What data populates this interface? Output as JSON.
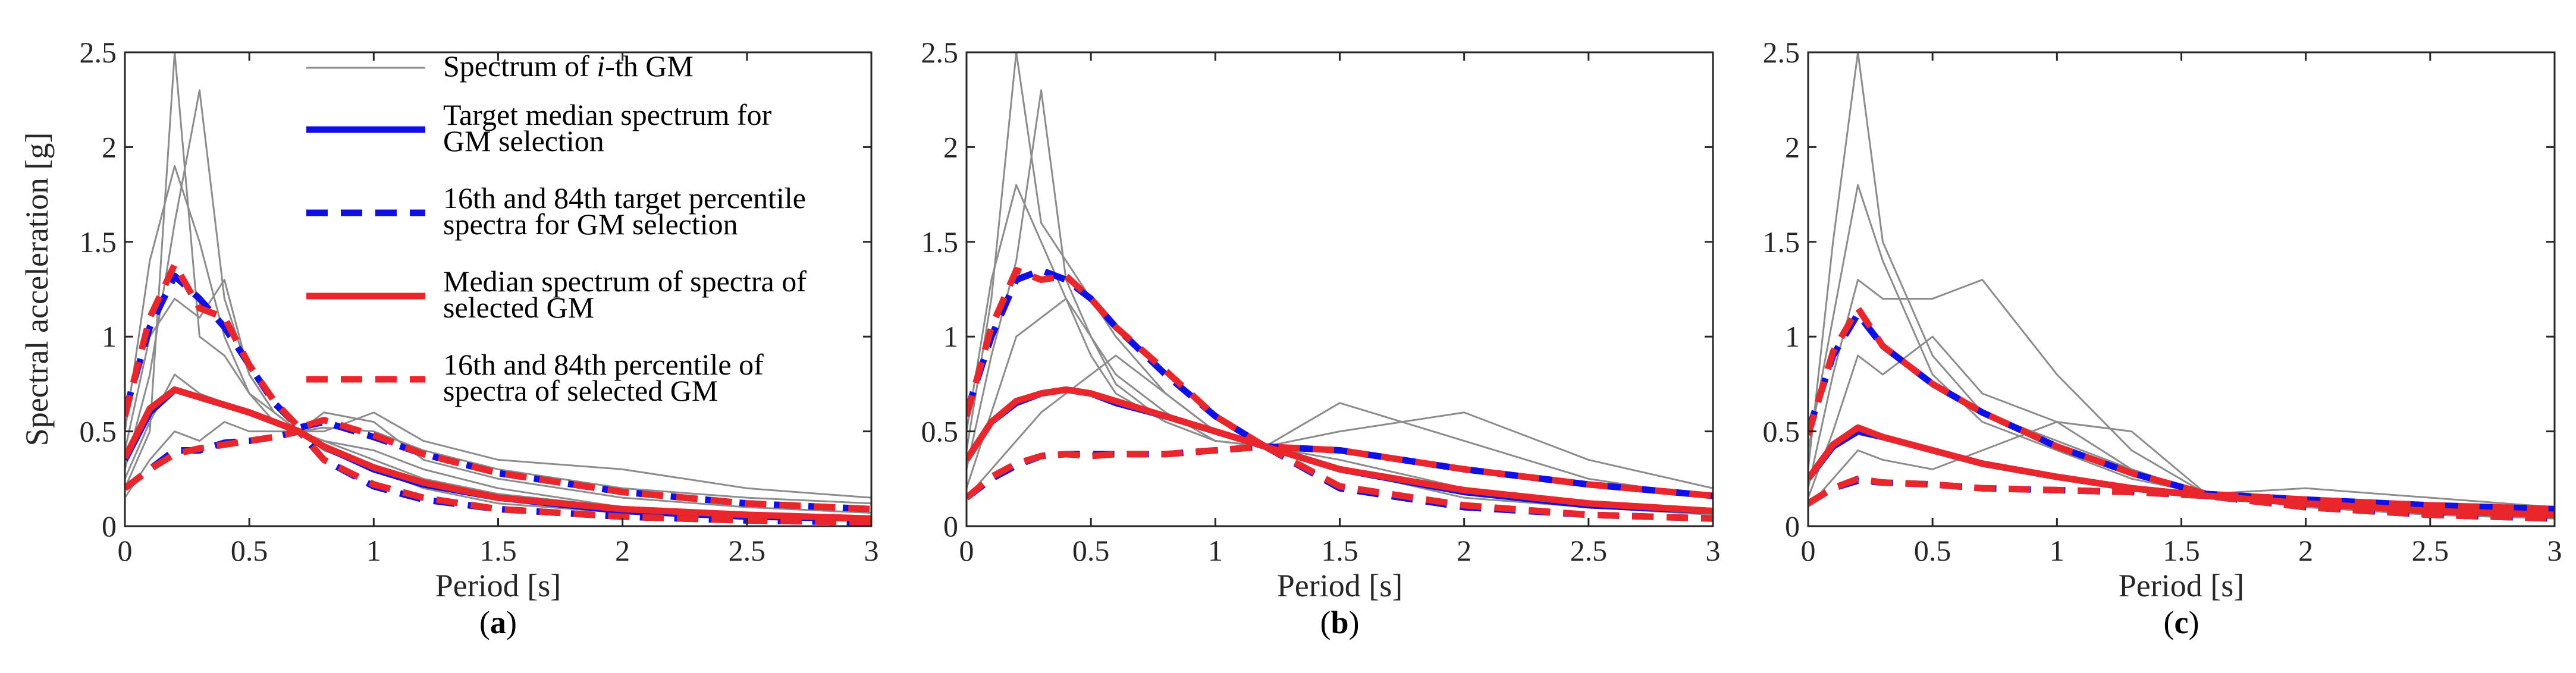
{
  "colors": {
    "gm": "#8c8c8c",
    "target": "#1010e6",
    "selected": "#e8262b",
    "axis": "#262626"
  },
  "legend": {
    "items": [
      {
        "lines": [
          "Spectrum of ",
          "i",
          "-th GM"
        ],
        "style": "gm"
      },
      {
        "lines": [
          "Target median spectrum for",
          "GM selection"
        ],
        "style": "target-solid"
      },
      {
        "lines": [
          "16th and 84th target percentile",
          "spectra for GM selection"
        ],
        "style": "target-dash"
      },
      {
        "lines": [
          "Median spectrum of spectra of",
          "selected GM"
        ],
        "style": "selected-solid"
      },
      {
        "lines": [
          "16th and 84th percentile of",
          "spectra of selected GM"
        ],
        "style": "selected-dash"
      }
    ]
  },
  "chart_data": [
    {
      "type": "line",
      "panel_label": "a",
      "xlabel": "Period [s]",
      "ylabel": "Spectral acceleration [g]",
      "xlim": [
        0,
        3
      ],
      "ylim": [
        0,
        2.5
      ],
      "xticks": [
        "0",
        "0.5",
        "1",
        "1.5",
        "2",
        "2.5",
        "3"
      ],
      "yticks": [
        "0",
        "0.5",
        "1",
        "1.5",
        "2",
        "2.5"
      ],
      "x": [
        0,
        0.1,
        0.2,
        0.3,
        0.4,
        0.5,
        0.6,
        0.7,
        0.8,
        1.0,
        1.2,
        1.5,
        2.0,
        2.5,
        3.0
      ],
      "series": [
        {
          "name": "Target median spectrum for GM selection",
          "values": [
            0.35,
            0.6,
            0.72,
            0.68,
            0.64,
            0.6,
            0.55,
            0.5,
            0.42,
            0.3,
            0.22,
            0.15,
            0.08,
            0.05,
            0.04
          ]
        },
        {
          "name": "Target 84th percentile spectrum",
          "values": [
            0.6,
            1.05,
            1.32,
            1.2,
            1.05,
            0.85,
            0.65,
            0.52,
            0.55,
            0.47,
            0.38,
            0.28,
            0.18,
            0.12,
            0.09
          ]
        },
        {
          "name": "Target 16th percentile spectrum",
          "values": [
            0.2,
            0.3,
            0.4,
            0.4,
            0.44,
            0.45,
            0.47,
            0.5,
            0.35,
            0.21,
            0.14,
            0.09,
            0.05,
            0.03,
            0.02
          ]
        },
        {
          "name": "Median spectrum of spectra of selected GM",
          "values": [
            0.36,
            0.62,
            0.72,
            0.68,
            0.64,
            0.6,
            0.55,
            0.5,
            0.42,
            0.31,
            0.23,
            0.15,
            0.09,
            0.06,
            0.04
          ]
        },
        {
          "name": "Selected GM 84th percentile",
          "values": [
            0.58,
            1.1,
            1.38,
            1.15,
            1.1,
            0.85,
            0.66,
            0.52,
            0.56,
            0.48,
            0.38,
            0.28,
            0.18,
            0.12,
            0.09
          ]
        },
        {
          "name": "Selected GM 16th percentile",
          "values": [
            0.2,
            0.3,
            0.38,
            0.41,
            0.43,
            0.45,
            0.47,
            0.5,
            0.35,
            0.22,
            0.15,
            0.09,
            0.05,
            0.03,
            0.02
          ]
        }
      ],
      "gm_spectra": [
        [
          0.3,
          0.8,
          1.6,
          2.3,
          1.2,
          0.8,
          0.6,
          0.5,
          0.45,
          0.4,
          0.3,
          0.2,
          0.1,
          0.07,
          0.05
        ],
        [
          0.2,
          0.5,
          2.5,
          1.0,
          0.9,
          0.7,
          0.6,
          0.5,
          0.4,
          0.3,
          0.2,
          0.12,
          0.07,
          0.05,
          0.03
        ],
        [
          0.5,
          1.4,
          1.9,
          1.5,
          1.0,
          0.7,
          0.55,
          0.5,
          0.6,
          0.55,
          0.35,
          0.25,
          0.15,
          0.1,
          0.07
        ],
        [
          0.15,
          0.35,
          0.5,
          0.45,
          0.55,
          0.5,
          0.5,
          0.5,
          0.5,
          0.6,
          0.45,
          0.35,
          0.3,
          0.2,
          0.15
        ],
        [
          0.4,
          1.0,
          1.2,
          1.1,
          1.3,
          0.8,
          0.6,
          0.5,
          0.45,
          0.35,
          0.25,
          0.17,
          0.1,
          0.07,
          0.05
        ],
        [
          0.25,
          0.55,
          0.8,
          0.7,
          0.65,
          0.6,
          0.55,
          0.5,
          0.52,
          0.5,
          0.4,
          0.3,
          0.2,
          0.15,
          0.12
        ]
      ]
    },
    {
      "type": "line",
      "panel_label": "b",
      "xlabel": "Period [s]",
      "ylabel": "",
      "xlim": [
        0,
        3
      ],
      "ylim": [
        0,
        2.5
      ],
      "xticks": [
        "0",
        "0.5",
        "1",
        "1.5",
        "2",
        "2.5",
        "3"
      ],
      "yticks": [
        "0",
        "0.5",
        "1",
        "1.5",
        "2",
        "2.5"
      ],
      "x": [
        0,
        0.1,
        0.2,
        0.3,
        0.4,
        0.5,
        0.6,
        0.8,
        1.0,
        1.2,
        1.5,
        2.0,
        2.5,
        3.0
      ],
      "series": [
        {
          "name": "Target median spectrum for GM selection",
          "values": [
            0.35,
            0.55,
            0.65,
            0.7,
            0.72,
            0.7,
            0.65,
            0.58,
            0.5,
            0.42,
            0.3,
            0.18,
            0.11,
            0.08
          ]
        },
        {
          "name": "Target 84th percentile spectrum",
          "values": [
            0.6,
            1.0,
            1.3,
            1.35,
            1.3,
            1.2,
            1.05,
            0.8,
            0.58,
            0.42,
            0.4,
            0.3,
            0.22,
            0.16
          ]
        },
        {
          "name": "Target 16th percentile spectrum",
          "values": [
            0.15,
            0.25,
            0.32,
            0.37,
            0.38,
            0.38,
            0.38,
            0.38,
            0.4,
            0.42,
            0.2,
            0.1,
            0.06,
            0.04
          ]
        },
        {
          "name": "Median spectrum of spectra of selected GM",
          "values": [
            0.35,
            0.55,
            0.66,
            0.7,
            0.72,
            0.7,
            0.66,
            0.58,
            0.5,
            0.42,
            0.3,
            0.19,
            0.12,
            0.08
          ]
        },
        {
          "name": "Selected GM 84th percentile",
          "values": [
            0.58,
            1.05,
            1.35,
            1.3,
            1.32,
            1.2,
            1.05,
            0.82,
            0.58,
            0.42,
            0.4,
            0.3,
            0.22,
            0.16
          ]
        },
        {
          "name": "Selected GM 16th percentile",
          "values": [
            0.15,
            0.26,
            0.33,
            0.37,
            0.38,
            0.37,
            0.38,
            0.38,
            0.4,
            0.42,
            0.21,
            0.11,
            0.06,
            0.04
          ]
        }
      ],
      "gm_spectra": [
        [
          0.4,
          1.2,
          2.5,
          1.6,
          1.4,
          1.2,
          1.0,
          0.7,
          0.5,
          0.42,
          0.3,
          0.2,
          0.12,
          0.08
        ],
        [
          0.3,
          0.9,
          1.4,
          2.3,
          1.3,
          1.0,
          0.8,
          0.6,
          0.45,
          0.42,
          0.65,
          0.45,
          0.25,
          0.15
        ],
        [
          0.2,
          0.6,
          1.0,
          1.1,
          1.2,
          1.0,
          0.75,
          0.55,
          0.45,
          0.42,
          0.5,
          0.6,
          0.35,
          0.2
        ],
        [
          0.15,
          0.3,
          0.45,
          0.6,
          0.7,
          0.8,
          0.9,
          0.7,
          0.5,
          0.42,
          0.35,
          0.2,
          0.12,
          0.08
        ],
        [
          0.5,
          1.3,
          1.8,
          1.5,
          1.2,
          0.9,
          0.7,
          0.55,
          0.45,
          0.42,
          0.3,
          0.15,
          0.1,
          0.06
        ]
      ]
    },
    {
      "type": "line",
      "panel_label": "c",
      "xlabel": "Period [s]",
      "ylabel": "",
      "xlim": [
        0,
        3
      ],
      "ylim": [
        0,
        2.5
      ],
      "xticks": [
        "0",
        "0.5",
        "1",
        "1.5",
        "2",
        "2.5",
        "3"
      ],
      "yticks": [
        "0",
        "0.5",
        "1",
        "1.5",
        "2",
        "2.5"
      ],
      "x": [
        0,
        0.1,
        0.2,
        0.3,
        0.5,
        0.7,
        1.0,
        1.3,
        1.6,
        2.0,
        2.5,
        3.0
      ],
      "series": [
        {
          "name": "Target median spectrum for GM selection",
          "values": [
            0.25,
            0.42,
            0.5,
            0.47,
            0.4,
            0.33,
            0.26,
            0.2,
            0.16,
            0.12,
            0.08,
            0.06
          ]
        },
        {
          "name": "Target 84th percentile spectrum",
          "values": [
            0.5,
            0.9,
            1.12,
            0.95,
            0.75,
            0.6,
            0.42,
            0.28,
            0.17,
            0.14,
            0.11,
            0.09
          ]
        },
        {
          "name": "Target 16th percentile spectrum",
          "values": [
            0.12,
            0.2,
            0.24,
            0.23,
            0.22,
            0.2,
            0.19,
            0.18,
            0.16,
            0.1,
            0.06,
            0.04
          ]
        },
        {
          "name": "Median spectrum of spectra of selected GM",
          "values": [
            0.25,
            0.43,
            0.52,
            0.47,
            0.4,
            0.33,
            0.26,
            0.2,
            0.16,
            0.12,
            0.08,
            0.06
          ]
        },
        {
          "name": "Selected GM 84th percentile",
          "values": [
            0.48,
            0.92,
            1.15,
            0.95,
            0.75,
            0.6,
            0.42,
            0.28,
            0.17,
            0.14,
            0.11,
            0.09
          ]
        },
        {
          "name": "Selected GM 16th percentile",
          "values": [
            0.12,
            0.2,
            0.25,
            0.23,
            0.22,
            0.2,
            0.19,
            0.18,
            0.16,
            0.1,
            0.06,
            0.04
          ]
        }
      ],
      "gm_spectra": [
        [
          0.3,
          1.5,
          2.5,
          1.5,
          0.9,
          0.6,
          0.45,
          0.3,
          0.17,
          0.12,
          0.08,
          0.05
        ],
        [
          0.2,
          0.8,
          1.3,
          1.2,
          1.2,
          1.3,
          0.8,
          0.4,
          0.17,
          0.1,
          0.06,
          0.04
        ],
        [
          0.15,
          0.5,
          0.9,
          0.8,
          1.0,
          0.7,
          0.55,
          0.5,
          0.17,
          0.15,
          0.12,
          0.08
        ],
        [
          0.4,
          1.1,
          1.8,
          1.4,
          0.8,
          0.55,
          0.4,
          0.25,
          0.17,
          0.14,
          0.1,
          0.07
        ],
        [
          0.1,
          0.25,
          0.4,
          0.35,
          0.3,
          0.4,
          0.55,
          0.3,
          0.17,
          0.2,
          0.15,
          0.1
        ]
      ]
    }
  ]
}
